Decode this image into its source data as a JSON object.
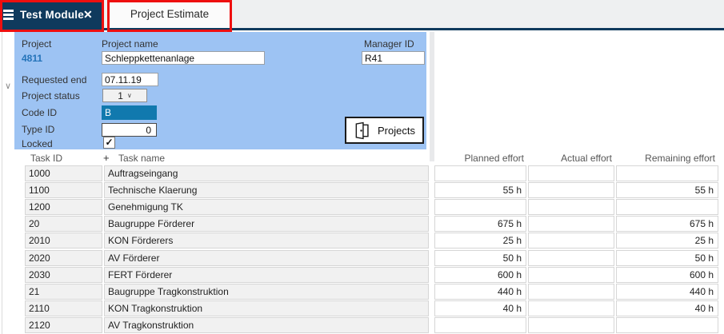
{
  "colors": {
    "navy": "#0f3a5d",
    "panel_blue": "#9dc3f3",
    "selection_teal": "#1179ae",
    "link_blue": "#2473b9",
    "annotation_red": "#ee0f0f",
    "row_gray": "#f1f1f1"
  },
  "icons": {
    "hamburger": "menu-bars",
    "close_glyph": "✕",
    "collapse_chevron": "∨",
    "select_chevron": "∨",
    "checkmark": "✓",
    "expander_glyph": "+",
    "door": "door-open"
  },
  "tab_bar": {
    "module_tab_label": "Test Module",
    "estimate_tab_label": "Project Estimate"
  },
  "panel": {
    "project_label": "Project",
    "project_value": "4811",
    "project_name_label": "Project name",
    "project_name_value": "Schleppkettenanlage",
    "manager_id_label": "Manager ID",
    "manager_id_value": "R41",
    "requested_end_label": "Requested end",
    "requested_end_value": "07.11.19",
    "project_status_label": "Project status",
    "project_status_value": "1",
    "code_id_label": "Code ID",
    "code_id_value": "B",
    "type_id_label": "Type ID",
    "type_id_value": "0",
    "locked_label": "Locked",
    "locked_checked": true,
    "projects_button_label": "Projects"
  },
  "table": {
    "headers": {
      "task_id": "Task ID",
      "task_name": "Task name",
      "planned": "Planned effort",
      "actual": "Actual effort",
      "remaining": "Remaining effort"
    },
    "rows": [
      {
        "task_id": "1000",
        "task_name": "Auftragseingang",
        "planned": "",
        "actual": "",
        "remaining": ""
      },
      {
        "task_id": "1100",
        "task_name": "Technische Klaerung",
        "planned": "55 h",
        "actual": "",
        "remaining": "55 h"
      },
      {
        "task_id": "1200",
        "task_name": "Genehmigung TK",
        "planned": "",
        "actual": "",
        "remaining": ""
      },
      {
        "task_id": "20",
        "task_name": "Baugruppe Förderer",
        "planned": "675 h",
        "actual": "",
        "remaining": "675 h"
      },
      {
        "task_id": "2010",
        "task_name": "KON Förderers",
        "planned": "25 h",
        "actual": "",
        "remaining": "25 h"
      },
      {
        "task_id": "2020",
        "task_name": "AV Förderer",
        "planned": "50 h",
        "actual": "",
        "remaining": "50 h"
      },
      {
        "task_id": "2030",
        "task_name": "FERT Förderer",
        "planned": "600 h",
        "actual": "",
        "remaining": "600 h"
      },
      {
        "task_id": "21",
        "task_name": "Baugruppe Tragkonstruktion",
        "planned": "440 h",
        "actual": "",
        "remaining": "440 h"
      },
      {
        "task_id": "2110",
        "task_name": "KON Tragkonstruktion",
        "planned": "40 h",
        "actual": "",
        "remaining": "40 h"
      },
      {
        "task_id": "2120",
        "task_name": "AV Tragkonstruktion",
        "planned": "",
        "actual": "",
        "remaining": ""
      }
    ]
  }
}
